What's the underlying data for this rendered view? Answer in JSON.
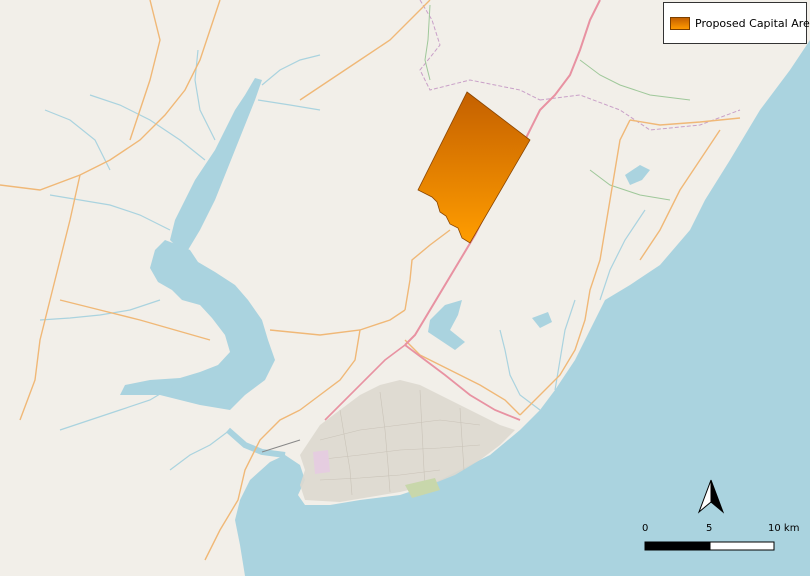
{
  "legend": {
    "label": "Proposed Capital Area",
    "swatch_color_top": "#c46000",
    "swatch_color_bottom": "#ff9a00"
  },
  "north_arrow": {
    "icon": "north-arrow-icon"
  },
  "scale_bar": {
    "labels": [
      "0",
      "5",
      "10 km"
    ]
  },
  "colors": {
    "water": "#aad3df",
    "land": "#f2efe9",
    "highway": "#e892a2",
    "primary_road": "#fcd6a4",
    "boundary": "#c9a0c8",
    "urban": "#ddd8cf",
    "capital_area": "#e07800"
  }
}
